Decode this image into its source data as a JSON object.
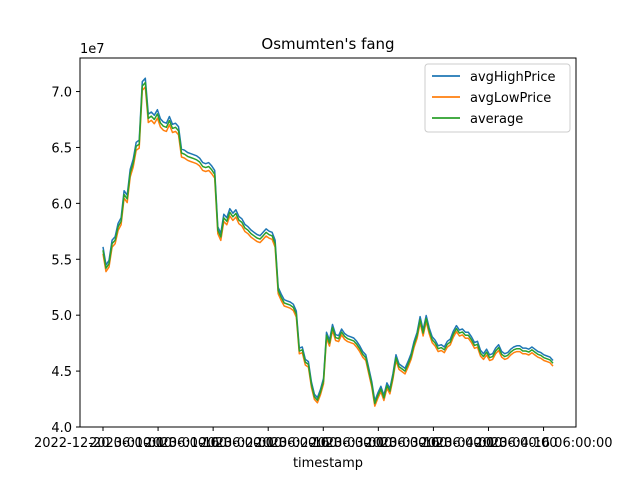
{
  "chart_data": {
    "type": "line",
    "title": "Osmumten's fang",
    "xlabel": "timestamp",
    "ylabel": "",
    "y_offset_label": "1e7",
    "ylim": [
      40000000,
      73000000
    ],
    "yticks": [
      40000000,
      45000000,
      50000000,
      55000000,
      60000000,
      65000000,
      70000000
    ],
    "ytick_labels": [
      "4.0",
      "4.5",
      "5.0",
      "5.5",
      "6.0",
      "6.5",
      "7.0"
    ],
    "xtick_labels": [
      "2022-12-20",
      "2023-01-01",
      "2023-01-16",
      "2023-02-01",
      "2023-02-16",
      "2023-03-01",
      "2023-03-16",
      "2023-04-01",
      "2023-04-16"
    ],
    "xtick_overlap_label": "12-20 06:00:00",
    "x_last_label": "18:00:00",
    "legend_position": "top-right",
    "grid": false,
    "series": [
      {
        "name": "avgHighPrice",
        "color": "#1f77b4"
      },
      {
        "name": "avgLowPrice",
        "color": "#ff7f0e"
      },
      {
        "name": "average",
        "color": "#2ca02c"
      }
    ],
    "x_index": [
      0,
      3,
      6,
      9,
      12,
      15,
      18,
      21,
      24,
      27,
      30,
      33,
      36,
      39,
      42,
      45,
      48,
      51,
      54,
      57,
      60,
      63,
      66,
      69,
      72,
      75,
      78,
      81,
      84,
      87,
      90,
      93,
      96,
      99,
      102,
      105,
      108,
      111,
      114,
      117,
      120,
      123,
      126,
      129,
      132,
      135,
      138,
      141,
      144,
      147,
      150,
      153,
      156,
      159,
      162,
      165,
      168,
      171,
      174,
      177,
      180,
      183,
      186,
      189,
      192,
      195,
      198,
      201,
      204,
      207,
      210,
      213,
      216,
      219,
      222,
      225,
      228,
      231,
      234,
      237,
      240,
      243,
      246,
      249,
      252,
      255,
      258,
      261,
      264,
      267,
      270,
      273,
      276,
      279,
      282,
      285,
      288,
      291,
      294,
      297,
      300,
      303,
      306,
      309,
      312,
      315,
      318,
      321,
      324,
      327,
      330,
      333,
      336,
      339,
      342,
      345,
      348,
      351,
      354,
      357,
      360,
      363,
      366,
      369,
      372,
      375,
      378,
      381,
      384,
      387,
      390,
      393,
      396,
      399,
      402,
      405,
      408,
      411,
      414,
      417,
      420,
      423,
      426,
      429,
      432,
      435,
      438,
      441,
      444,
      447
    ],
    "average_values": [
      55800000,
      54200000,
      54600000,
      56400000,
      56700000,
      57900000,
      58400000,
      60800000,
      60400000,
      62700000,
      63600000,
      65100000,
      65300000,
      70500000,
      70800000,
      67600000,
      67800000,
      67500000,
      68000000,
      67200000,
      66900000,
      66800000,
      67400000,
      66700000,
      66800000,
      66500000,
      64500000,
      64400000,
      64200000,
      64100000,
      64000000,
      63900000,
      63700000,
      63300000,
      63200000,
      63300000,
      63000000,
      62600000,
      57600000,
      57000000,
      58700000,
      58400000,
      59200000,
      58800000,
      59100000,
      58500000,
      58300000,
      57800000,
      57600000,
      57300000,
      57100000,
      56900000,
      56800000,
      57100000,
      57400000,
      57200000,
      57100000,
      56400000,
      52200000,
      51600000,
      51100000,
      51000000,
      50900000,
      50700000,
      50100000,
      46800000,
      46900000,
      45800000,
      45600000,
      43800000,
      42700000,
      42400000,
      43100000,
      44100000,
      48200000,
      47500000,
      48900000,
      48000000,
      47900000,
      48500000,
      48100000,
      47900000,
      47800000,
      47700000,
      47400000,
      47000000,
      46500000,
      46200000,
      45000000,
      43800000,
      42100000,
      42800000,
      43400000,
      42600000,
      43700000,
      43200000,
      44500000,
      46200000,
      45400000,
      45200000,
      45000000,
      45600000,
      46300000,
      47400000,
      48200000,
      49600000,
      48400000,
      49700000,
      48600000,
      47800000,
      47500000,
      47000000,
      47100000,
      46900000,
      47400000,
      47600000,
      48300000,
      48800000,
      48400000,
      48500000,
      48200000,
      48200000,
      47800000,
      47300000,
      47400000,
      46600000,
      46300000,
      46700000,
      46200000,
      46300000,
      46800000,
      47100000,
      46500000,
      46300000,
      46400000,
      46700000,
      46900000,
      47000000,
      47000000,
      46800000,
      46800000,
      46700000,
      46900000,
      46700000,
      46500000,
      46400000,
      46200000,
      46100000,
      46000000,
      45700000
    ]
  }
}
